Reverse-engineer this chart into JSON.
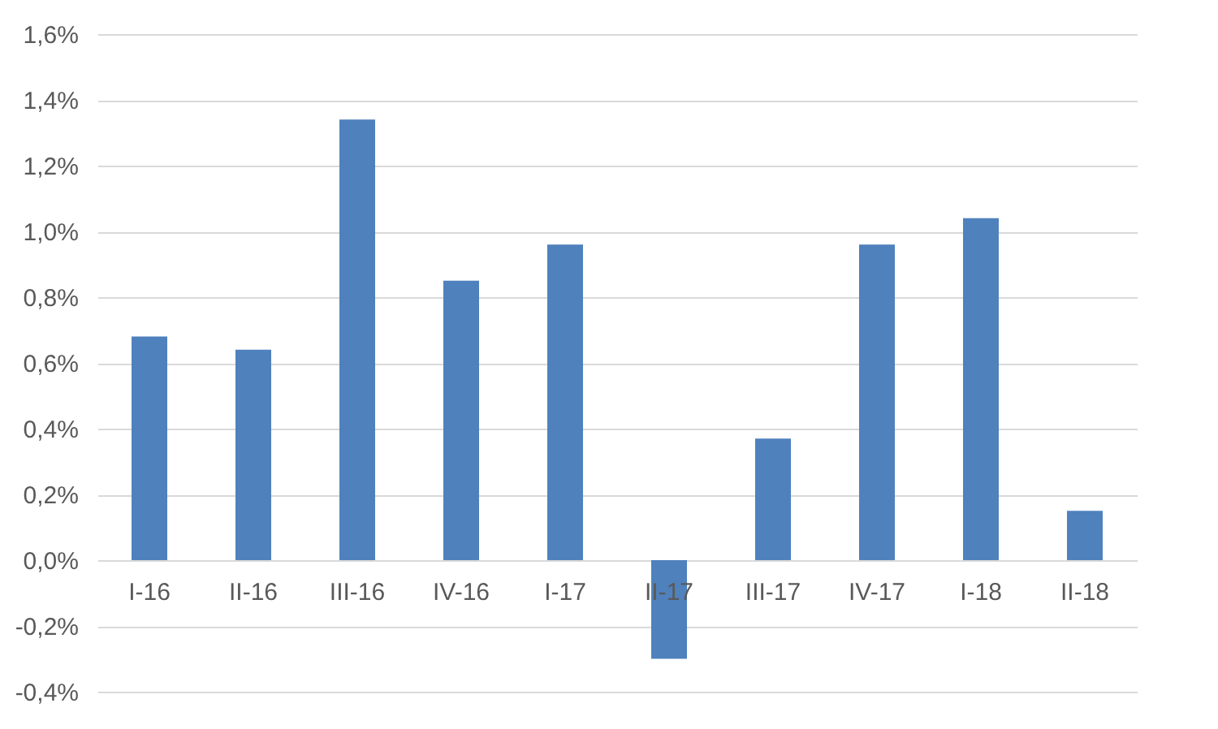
{
  "chart_data": {
    "type": "bar",
    "categories": [
      "I-16",
      "II-16",
      "III-16",
      "IV-16",
      "I-17",
      "II-17",
      "III-17",
      "IV-17",
      "I-18",
      "II-18"
    ],
    "values": [
      0.68,
      0.64,
      1.34,
      0.85,
      0.96,
      -0.3,
      0.37,
      0.96,
      1.04,
      0.15
    ],
    "color": "#4f81bd",
    "ylim": [
      -0.4,
      1.6
    ],
    "yticks": [
      {
        "value": -0.4,
        "label": "-0,4%"
      },
      {
        "value": -0.2,
        "label": "-0,2%"
      },
      {
        "value": 0,
        "label": "0,0%"
      },
      {
        "value": 0.2,
        "label": "0,2%"
      },
      {
        "value": 0.4,
        "label": "0,4%"
      },
      {
        "value": 0.6,
        "label": "0,6%"
      },
      {
        "value": 0.8,
        "label": "0,8%"
      },
      {
        "value": 1.0,
        "label": "1,0%"
      },
      {
        "value": 1.2,
        "label": "1,2%"
      },
      {
        "value": 1.4,
        "label": "1,4%"
      },
      {
        "value": 1.6,
        "label": "1,6%"
      }
    ],
    "grid": "y"
  }
}
